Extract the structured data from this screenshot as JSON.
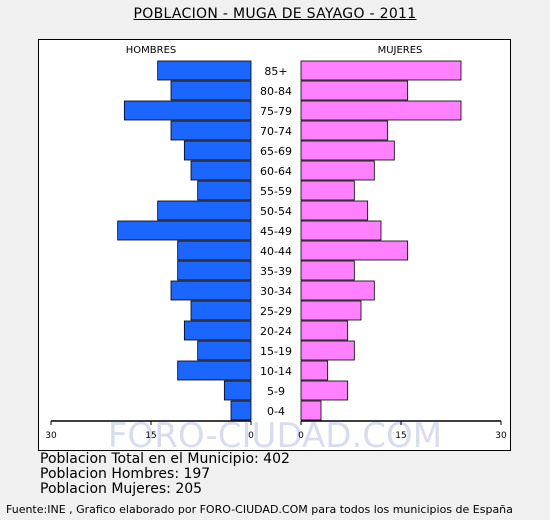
{
  "title": "POBLACION - MUGA DE SAYAGO - 2011",
  "summary": {
    "total": "Poblacion Total en el Municipio: 402",
    "hombres": "Poblacion Hombres: 197",
    "mujeres": "Poblacion Mujeres: 205"
  },
  "footer": "Fuente:INE , Grafico elaborado por FORO-CIUDAD.COM para todos los municipios de España",
  "watermark": "FORO-CIUDAD.COM",
  "colors": {
    "hombres": "#1a66ff",
    "mujeres": "#ff80ff",
    "watermark": "#d8dcf0"
  },
  "chart_data": {
    "type": "bar",
    "orientation": "horizontal-pyramid",
    "categories": [
      "85+",
      "80-84",
      "75-79",
      "70-74",
      "65-69",
      "60-64",
      "55-59",
      "50-54",
      "45-49",
      "40-44",
      "35-39",
      "30-34",
      "25-29",
      "20-24",
      "15-19",
      "10-14",
      "5-9",
      "0-4"
    ],
    "series": [
      {
        "name": "HOMBRES",
        "values": [
          14,
          12,
          19,
          12,
          10,
          9,
          8,
          14,
          20,
          11,
          11,
          12,
          9,
          10,
          8,
          11,
          4,
          3
        ]
      },
      {
        "name": "MUJERES",
        "values": [
          24,
          16,
          24,
          13,
          14,
          11,
          8,
          10,
          12,
          16,
          8,
          11,
          9,
          7,
          8,
          4,
          7,
          3
        ]
      }
    ],
    "x_ticks": [
      "30",
      "15",
      "0",
      "0",
      "15",
      "30"
    ],
    "xlim": [
      0,
      30
    ]
  }
}
